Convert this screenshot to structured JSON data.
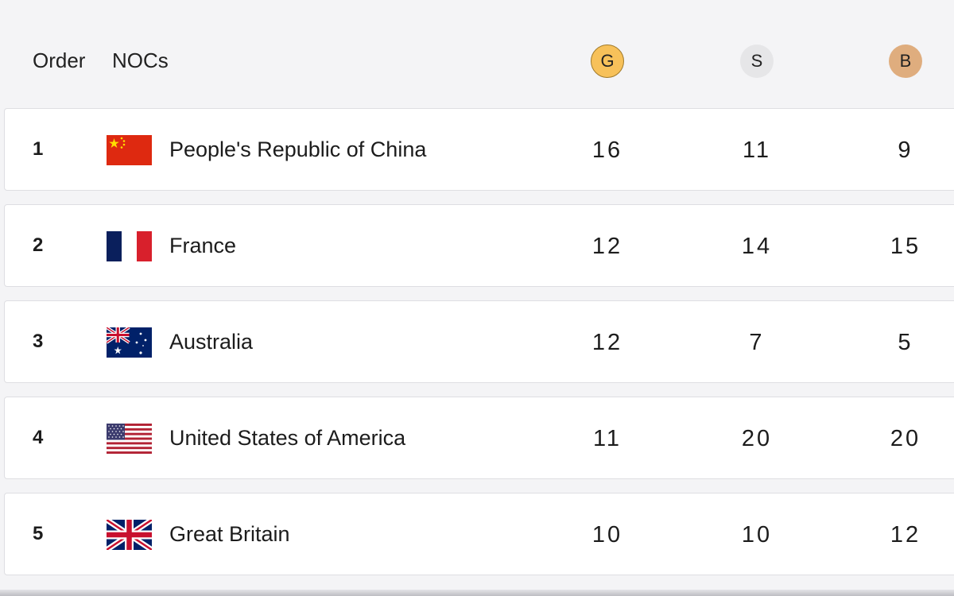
{
  "header": {
    "order_label": "Order",
    "nocs_label": "NOCs",
    "gold_label": "G",
    "silver_label": "S",
    "bronze_label": "B"
  },
  "colors": {
    "gold": "#f7c15a",
    "silver": "#e6e6e8",
    "bronze": "#dfad7e",
    "row_background": "#ffffff",
    "page_background": "#f4f4f6"
  },
  "rows": [
    {
      "rank": "1",
      "country": "People's Republic of China",
      "flag": "china-flag-icon",
      "gold": "16",
      "silver": "11",
      "bronze": "9"
    },
    {
      "rank": "2",
      "country": "France",
      "flag": "france-flag-icon",
      "gold": "12",
      "silver": "14",
      "bronze": "15"
    },
    {
      "rank": "3",
      "country": "Australia",
      "flag": "australia-flag-icon",
      "gold": "12",
      "silver": "7",
      "bronze": "5"
    },
    {
      "rank": "4",
      "country": "United States of America",
      "flag": "usa-flag-icon",
      "gold": "11",
      "silver": "20",
      "bronze": "20"
    },
    {
      "rank": "5",
      "country": "Great Britain",
      "flag": "great-britain-flag-icon",
      "gold": "10",
      "silver": "10",
      "bronze": "12"
    }
  ]
}
